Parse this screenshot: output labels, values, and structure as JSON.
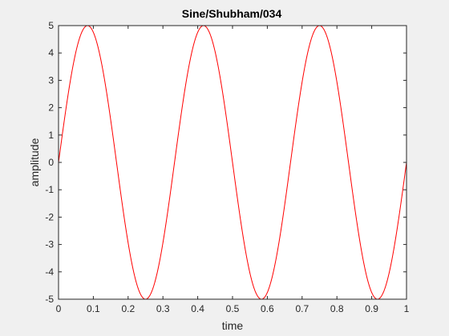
{
  "chart_data": {
    "type": "line",
    "title": "Sine/Shubham/034",
    "xlabel": "time",
    "ylabel": "amplitude",
    "xlim": [
      0,
      1
    ],
    "ylim": [
      -5,
      5
    ],
    "x_ticks": [
      0,
      0.1,
      0.2,
      0.3,
      0.4,
      0.5,
      0.6,
      0.7,
      0.8,
      0.9,
      1
    ],
    "x_tick_labels": [
      "0",
      "0.1",
      "0.2",
      "0.3",
      "0.4",
      "0.5",
      "0.6",
      "0.7",
      "0.8",
      "0.9",
      "1"
    ],
    "y_ticks": [
      -5,
      -4,
      -3,
      -2,
      -1,
      0,
      1,
      2,
      3,
      4,
      5
    ],
    "y_tick_labels": [
      "-5",
      "-4",
      "-3",
      "-2",
      "-1",
      "0",
      "1",
      "2",
      "3",
      "4",
      "5"
    ],
    "grid": false,
    "series": [
      {
        "function": "sine",
        "amplitude": 5,
        "frequency_hz": 3,
        "color": "#ff0000"
      }
    ]
  },
  "colors": {
    "figure_background": "#f0f0f0",
    "axes_background": "#ffffff",
    "axis_color": "#262626"
  }
}
